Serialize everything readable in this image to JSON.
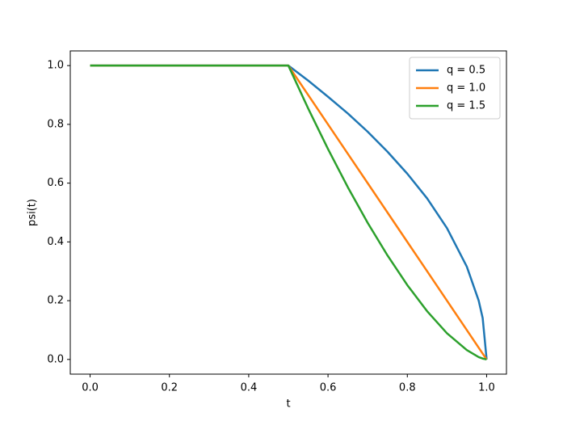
{
  "chart_data": {
    "type": "line",
    "x_label": "t",
    "y_label": "psi(t)",
    "x": [
      0,
      0.1,
      0.2,
      0.3,
      0.4,
      0.5,
      0.55,
      0.6,
      0.65,
      0.7,
      0.75,
      0.8,
      0.85,
      0.9,
      0.95,
      0.98,
      0.99,
      1.0
    ],
    "series": [
      {
        "name": "q = 0.5",
        "color": "#1f77b4",
        "values": [
          1,
          1,
          1,
          1,
          1,
          1,
          0.949,
          0.894,
          0.837,
          0.775,
          0.707,
          0.632,
          0.548,
          0.447,
          0.316,
          0.2,
          0.141,
          0
        ]
      },
      {
        "name": "q = 1.0",
        "color": "#ff7f0e",
        "values": [
          1,
          1,
          1,
          1,
          1,
          1,
          0.9,
          0.8,
          0.7,
          0.6,
          0.5,
          0.4,
          0.3,
          0.2,
          0.1,
          0.04,
          0.02,
          0
        ]
      },
      {
        "name": "q = 1.5",
        "color": "#2ca02c",
        "values": [
          1,
          1,
          1,
          1,
          1,
          1,
          0.854,
          0.716,
          0.586,
          0.465,
          0.354,
          0.253,
          0.164,
          0.089,
          0.032,
          0.008,
          0.003,
          0
        ]
      }
    ],
    "xlim": [
      -0.05,
      1.05
    ],
    "ylim": [
      -0.05,
      1.05
    ],
    "xticks": [
      {
        "value": 0,
        "label": "0.0"
      },
      0.2,
      0.4,
      0.6,
      0.8,
      {
        "value": 1,
        "label": "1.0"
      }
    ],
    "yticks": [
      {
        "value": 0,
        "label": "0.0"
      },
      0.2,
      0.4,
      0.6,
      0.8,
      {
        "value": 1,
        "label": "1.0"
      }
    ],
    "grid": false,
    "legend": "upper right"
  }
}
